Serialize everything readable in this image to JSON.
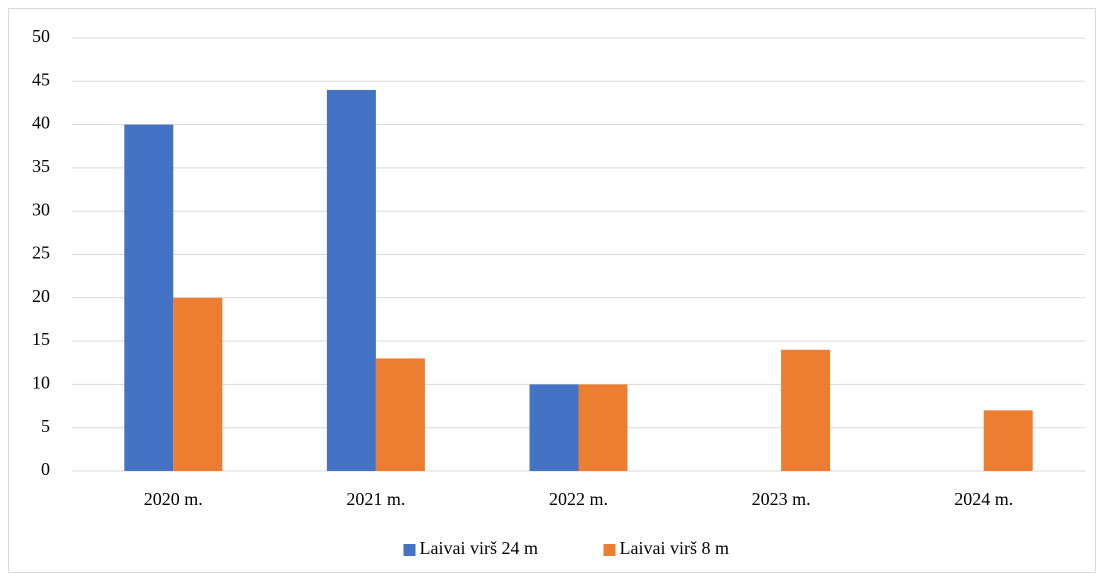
{
  "chart_data": {
    "type": "bar",
    "categories": [
      "2020 m.",
      "2021 m.",
      "2022 m.",
      "2023 m.",
      "2024 m."
    ],
    "series": [
      {
        "name": "Laivai virš 24 m",
        "color": "#4472c4",
        "values": [
          40,
          44,
          10,
          0,
          0
        ]
      },
      {
        "name": "Laivai virš 8 m",
        "color": "#ed7d31",
        "values": [
          20,
          13,
          10,
          14,
          7
        ]
      }
    ],
    "ylim": [
      0,
      50
    ],
    "yticks": [
      0,
      5,
      10,
      15,
      20,
      25,
      30,
      35,
      40,
      45,
      50
    ],
    "grid": true,
    "legend": "bottom"
  }
}
